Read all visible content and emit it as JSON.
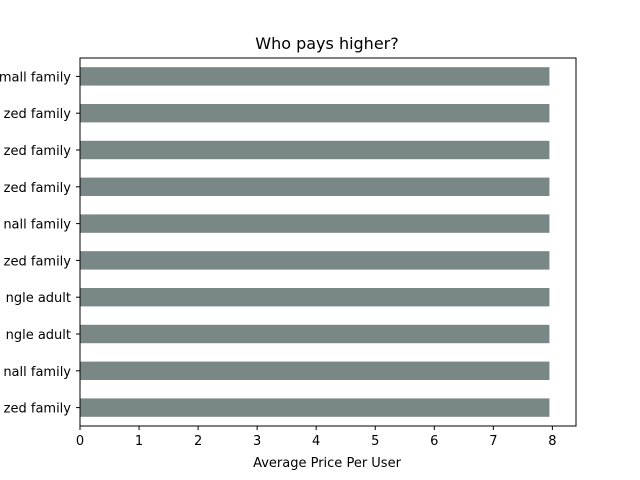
{
  "chart_data": {
    "type": "bar",
    "orientation": "horizontal",
    "title": "Who pays higher?",
    "xlabel": "Average Price Per User",
    "ylabel": "",
    "xlim": [
      0,
      8.4
    ],
    "x_ticks": [
      0,
      1,
      2,
      3,
      4,
      5,
      6,
      7,
      8
    ],
    "categories": [
      "mall family",
      "zed family",
      "zed family",
      "zed family",
      "nall family",
      "zed family",
      "ngle adult",
      "ngle adult",
      "nall family",
      "zed family"
    ],
    "values": [
      7.95,
      7.95,
      7.95,
      7.95,
      7.95,
      7.95,
      7.95,
      7.95,
      7.95,
      7.95
    ],
    "bar_color": "#7a8787",
    "grid": false,
    "legend": "none"
  }
}
